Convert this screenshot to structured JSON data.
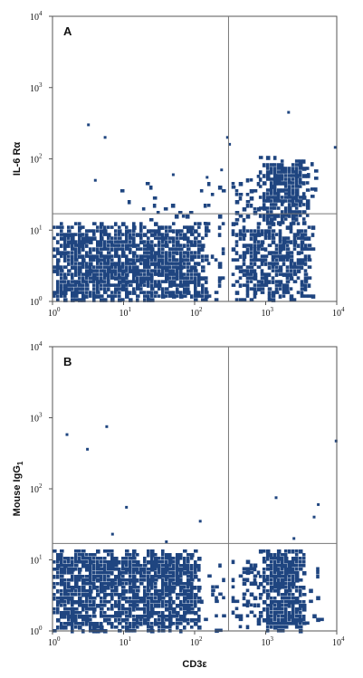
{
  "chart_data": [
    {
      "type": "scatter",
      "panel_label": "A",
      "xlabel": "",
      "ylabel": "IL-6 Rα",
      "ylabel_sub": "",
      "xscale": "log",
      "yscale": "log",
      "xlim": [
        1,
        10000
      ],
      "ylim": [
        1,
        10000
      ],
      "x_ticks": [
        {
          "base": "10",
          "exp": "0"
        },
        {
          "base": "10",
          "exp": "1"
        },
        {
          "base": "10",
          "exp": "2"
        },
        {
          "base": "10",
          "exp": "3"
        },
        {
          "base": "10",
          "exp": "4"
        }
      ],
      "y_ticks": [
        {
          "base": "10",
          "exp": "0"
        },
        {
          "base": "10",
          "exp": "1"
        },
        {
          "base": "10",
          "exp": "2"
        },
        {
          "base": "10",
          "exp": "3"
        },
        {
          "base": "10",
          "exp": "4"
        }
      ],
      "quadrant_x": 300,
      "quadrant_y": 17,
      "grid": false,
      "populations": [
        {
          "x_range": [
            1,
            150
          ],
          "y_range": [
            1,
            13
          ],
          "density": 0.85
        },
        {
          "x_range": [
            150,
            260
          ],
          "y_range": [
            1,
            13
          ],
          "density": 0.3
        },
        {
          "x_range": [
            330,
            4500
          ],
          "y_range": [
            1.1,
            13
          ],
          "density": 0.7
        },
        {
          "x_range": [
            800,
            3800
          ],
          "y_range": [
            13,
            110
          ],
          "density": 0.9
        },
        {
          "x_range": [
            330,
            800
          ],
          "y_range": [
            13,
            60
          ],
          "density": 0.4
        },
        {
          "x_range": [
            3800,
            6000
          ],
          "y_range": [
            20,
            90
          ],
          "density": 0.35
        },
        {
          "x_range": [
            8,
            260
          ],
          "y_range": [
            13,
            60
          ],
          "density": 0.06
        }
      ],
      "scattered_points": [
        [
          3.2,
          300
        ],
        [
          5.5,
          200
        ],
        [
          290,
          200
        ],
        [
          310,
          160
        ],
        [
          2100,
          450
        ],
        [
          9500,
          145
        ],
        [
          4,
          50
        ],
        [
          50,
          60
        ],
        [
          150,
          55
        ],
        [
          240,
          70
        ]
      ]
    },
    {
      "type": "scatter",
      "panel_label": "B",
      "xlabel": "CD3ε",
      "ylabel": "Mouse IgG",
      "ylabel_sub": "1",
      "xscale": "log",
      "yscale": "log",
      "xlim": [
        1,
        10000
      ],
      "ylim": [
        1,
        10000
      ],
      "x_ticks": [
        {
          "base": "10",
          "exp": "0"
        },
        {
          "base": "10",
          "exp": "1"
        },
        {
          "base": "10",
          "exp": "2"
        },
        {
          "base": "10",
          "exp": "3"
        },
        {
          "base": "10",
          "exp": "4"
        }
      ],
      "y_ticks": [
        {
          "base": "10",
          "exp": "0"
        },
        {
          "base": "10",
          "exp": "1"
        },
        {
          "base": "10",
          "exp": "2"
        },
        {
          "base": "10",
          "exp": "3"
        },
        {
          "base": "10",
          "exp": "4"
        }
      ],
      "quadrant_x": 300,
      "quadrant_y": 17,
      "grid": false,
      "populations": [
        {
          "x_range": [
            1,
            120
          ],
          "y_range": [
            1,
            14
          ],
          "density": 0.85
        },
        {
          "x_range": [
            120,
            260
          ],
          "y_range": [
            1,
            10
          ],
          "density": 0.25
        },
        {
          "x_range": [
            800,
            3600
          ],
          "y_range": [
            1,
            14
          ],
          "density": 0.95
        },
        {
          "x_range": [
            330,
            800
          ],
          "y_range": [
            1.2,
            10
          ],
          "density": 0.4
        },
        {
          "x_range": [
            3600,
            6000
          ],
          "y_range": [
            1.2,
            10
          ],
          "density": 0.3
        }
      ],
      "scattered_points": [
        [
          1.6,
          580
        ],
        [
          3.1,
          360
        ],
        [
          5.8,
          750
        ],
        [
          11,
          55
        ],
        [
          7,
          23
        ],
        [
          40,
          18
        ],
        [
          120,
          35
        ],
        [
          1400,
          75
        ],
        [
          2500,
          20
        ],
        [
          4800,
          40
        ],
        [
          5500,
          60
        ],
        [
          9800,
          470
        ]
      ]
    }
  ]
}
